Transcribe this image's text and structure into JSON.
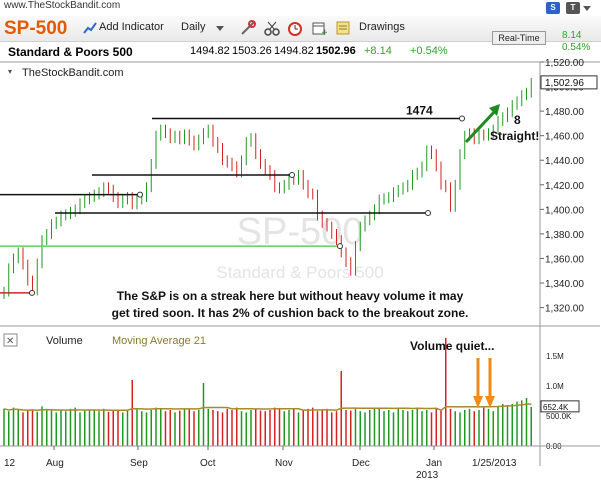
{
  "site_url": "www.TheStockBandit.com",
  "header": {
    "symbol": "SP-500",
    "add_indicator": "Add Indicator",
    "interval": "Daily",
    "drawings": "Drawings",
    "badge_s": "S",
    "badge_t": "T",
    "realtime": "Real-Time",
    "right_change": "8.14",
    "right_pct": "0.54%"
  },
  "info": {
    "name": "Standard & Poors 500",
    "open": "1494.82",
    "high": "1503.26",
    "low": "1494.82",
    "close": "1502.96",
    "change": "+8.14",
    "pct": "+0.54%"
  },
  "chart_data": {
    "type": "candlestick",
    "source_label": "TheStockBandit.com",
    "watermark_symbol": "SP-500",
    "watermark_name": "Standard & Poors 500",
    "last_price_label": "1,502.96",
    "ylim": [
      1305,
      1520
    ],
    "yticks": [
      "1,520.00",
      "1,500.00",
      "1,480.00",
      "1,460.00",
      "1,440.00",
      "1,420.00",
      "1,400.00",
      "1,380.00",
      "1,360.00",
      "1,340.00",
      "1,320.00"
    ],
    "ytick_values": [
      1520,
      1500,
      1480,
      1460,
      1440,
      1420,
      1400,
      1380,
      1360,
      1340,
      1320
    ],
    "xticks": [
      "12",
      "Aug",
      "Sep",
      "Oct",
      "Nov",
      "Dec",
      "Jan",
      "1/25/2013"
    ],
    "xtick_sub": "2013",
    "closes": [
      1333,
      1352,
      1360,
      1365,
      1355,
      1342,
      1334,
      1356,
      1375,
      1380,
      1388,
      1390,
      1395,
      1396,
      1398,
      1400,
      1405,
      1408,
      1410,
      1412,
      1414,
      1418,
      1416,
      1410,
      1405,
      1408,
      1410,
      1404,
      1408,
      1410,
      1418,
      1437,
      1460,
      1465,
      1462,
      1458,
      1460,
      1457,
      1461,
      1456,
      1452,
      1457,
      1462,
      1465,
      1455,
      1450,
      1440,
      1438,
      1435,
      1430,
      1440,
      1455,
      1458,
      1445,
      1437,
      1432,
      1428,
      1418,
      1417,
      1420,
      1425,
      1424,
      1428,
      1420,
      1413,
      1412,
      1395,
      1389,
      1386,
      1380,
      1375,
      1365,
      1357,
      1350,
      1370,
      1386,
      1391,
      1395,
      1400,
      1408,
      1409,
      1410,
      1414,
      1416,
      1418,
      1420,
      1428,
      1430,
      1435,
      1448,
      1445,
      1435,
      1420,
      1418,
      1402,
      1420,
      1445,
      1460,
      1462,
      1457,
      1461,
      1460,
      1462,
      1465,
      1472,
      1475,
      1479,
      1485,
      1488,
      1493,
      1495,
      1503
    ],
    "levels": [
      {
        "label": "",
        "value": 1474
      },
      {
        "label": "",
        "value": 1428
      },
      {
        "label": "",
        "value": 1397
      },
      {
        "label": "",
        "value": 1412
      },
      {
        "label": "",
        "value": 1370
      }
    ],
    "level_label": "1474",
    "arrow_note": "8\nStraight!",
    "note": "The S&P is on a streak here but without heavy volume it may get tired soon. It has 2% of cushion back to the breakout zone.",
    "volume": {
      "label": "Volume",
      "ma_label": "Moving Average 21",
      "ticks": [
        "1.5M",
        "1.0M",
        "500.0K",
        "0.00"
      ],
      "tick_values": [
        1500000,
        1000000,
        500000,
        0
      ],
      "last_label": "652.4K",
      "note": "Volume quiet...",
      "values": [
        620,
        580,
        640,
        600,
        560,
        590,
        610,
        570,
        660,
        620,
        590,
        560,
        600,
        580,
        620,
        640,
        560,
        590,
        610,
        600,
        580,
        620,
        570,
        600,
        590,
        560,
        600,
        1100,
        620,
        580,
        560,
        600,
        640,
        620,
        580,
        600,
        560,
        590,
        620,
        610,
        580,
        600,
        1050,
        620,
        600,
        580,
        560,
        620,
        600,
        640,
        580,
        560,
        600,
        620,
        590,
        580,
        600,
        640,
        620,
        580,
        600,
        620,
        560,
        600,
        620,
        640,
        580,
        600,
        620,
        560,
        580,
        1250,
        600,
        590,
        620,
        580,
        560,
        600,
        620,
        640,
        580,
        600,
        560,
        620,
        600,
        580,
        600,
        620,
        580,
        600,
        560,
        620,
        600,
        1800,
        620,
        580,
        560,
        600,
        620,
        580,
        600,
        640,
        620,
        580,
        660,
        700,
        680,
        700,
        740,
        760,
        800,
        652
      ]
    }
  }
}
